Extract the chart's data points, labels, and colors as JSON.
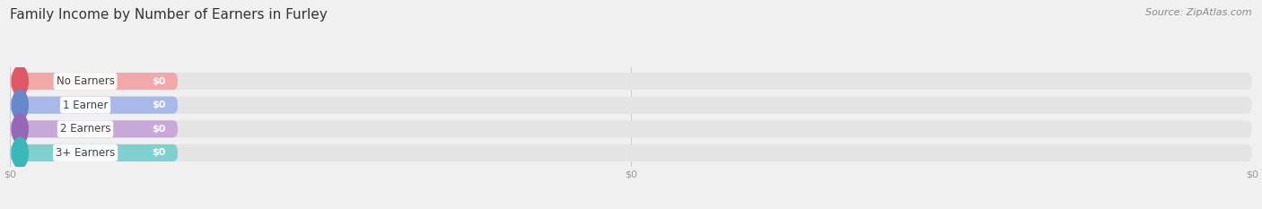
{
  "title": "Family Income by Number of Earners in Furley",
  "source": "Source: ZipAtlas.com",
  "categories": [
    "No Earners",
    "1 Earner",
    "2 Earners",
    "3+ Earners"
  ],
  "values": [
    0,
    0,
    0,
    0
  ],
  "bar_colors": [
    "#f2a8a8",
    "#a8b8e8",
    "#c8a8d8",
    "#80d0d0"
  ],
  "dot_colors": [
    "#e05868",
    "#6888cc",
    "#9868b8",
    "#38b8b8"
  ],
  "background_color": "#f0f0f0",
  "bar_bg_color": "#e4e4e4",
  "bar_height": 0.72,
  "label_bg": "white",
  "title_fontsize": 11,
  "source_fontsize": 8,
  "tick_label_fontsize": 8,
  "cat_fontsize": 8.5,
  "value_fontsize": 8,
  "xlim_max": 100
}
